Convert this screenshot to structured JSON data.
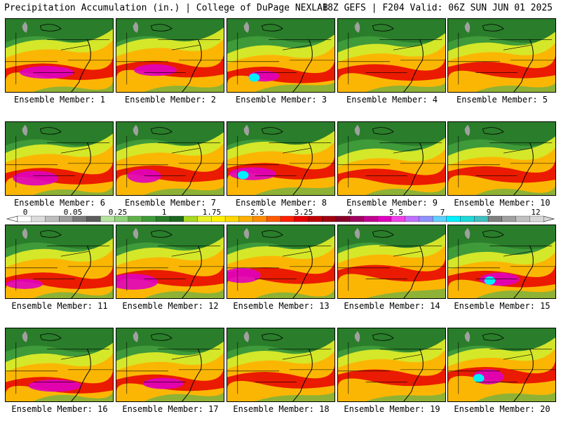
{
  "header": {
    "title": "Precipitation Accumulation (in.) | College of DuPage NEXLAB",
    "run_info": "18Z GEFS | F204 Valid: 06Z SUN JUN 01 2025"
  },
  "legend": {
    "labels": [
      "0",
      "0.05",
      "0.25",
      "1",
      "1.75",
      "2.5",
      "3.25",
      "4",
      "5.5",
      "7",
      "9",
      "12"
    ],
    "colors": [
      "#ffffff",
      "#dcdcdc",
      "#bdbdbd",
      "#9e9e9e",
      "#7a7a7a",
      "#5c5c5c",
      "#b5e3a0",
      "#8fd27a",
      "#60b04a",
      "#3f9a3a",
      "#2a7d2a",
      "#1d6820",
      "#a8d820",
      "#e6f028",
      "#fff200",
      "#ffd700",
      "#ffb000",
      "#ff8c00",
      "#ff5a00",
      "#ff2000",
      "#e60000",
      "#c00000",
      "#a00010",
      "#880028",
      "#a00060",
      "#c00090",
      "#e000c0",
      "#f040e8",
      "#c070ff",
      "#9090ff",
      "#60d0ff",
      "#00f0ff",
      "#20d8d8",
      "#40c0c0",
      "#808080",
      "#a0a0a0",
      "#c0c0c0",
      "#d8d8d8"
    ]
  },
  "panels": [
    {
      "label": "Ensemble Member: 1"
    },
    {
      "label": "Ensemble Member: 2"
    },
    {
      "label": "Ensemble Member: 3"
    },
    {
      "label": "Ensemble Member: 4"
    },
    {
      "label": "Ensemble Member: 5"
    },
    {
      "label": "Ensemble Member: 6"
    },
    {
      "label": "Ensemble Member: 7"
    },
    {
      "label": "Ensemble Member: 8"
    },
    {
      "label": "Ensemble Member: 9"
    },
    {
      "label": "Ensemble Member: 10"
    },
    {
      "label": "Ensemble Member: 11"
    },
    {
      "label": "Ensemble Member: 12"
    },
    {
      "label": "Ensemble Member: 13"
    },
    {
      "label": "Ensemble Member: 14"
    },
    {
      "label": "Ensemble Member: 15"
    },
    {
      "label": "Ensemble Member: 16"
    },
    {
      "label": "Ensemble Member: 17"
    },
    {
      "label": "Ensemble Member: 18"
    },
    {
      "label": "Ensemble Member: 19"
    },
    {
      "label": "Ensemble Member: 20"
    }
  ]
}
